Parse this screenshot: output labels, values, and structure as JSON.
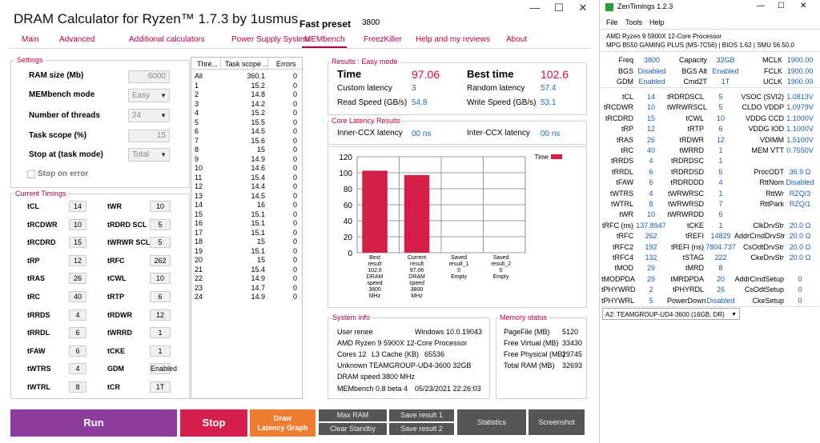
{
  "app": {
    "title": "DRAM Calculator for Ryzen™ 1.7.3 by 1usmus",
    "preset_label": "Fast preset",
    "preset_value": "3800",
    "controls": {
      "minimize": "—",
      "maximize": "☐",
      "close": "✕"
    }
  },
  "tabs": [
    {
      "label": "Main"
    },
    {
      "label": "Advanced"
    },
    {
      "label": "Additional calculators"
    },
    {
      "label": "Power Supply System"
    },
    {
      "label": "MEMbench"
    },
    {
      "label": "FreezKiller"
    },
    {
      "label": "Help and my reviews"
    },
    {
      "label": "About"
    }
  ],
  "settings": {
    "title": "Settings",
    "ram_size_label": "RAM size (Mb)",
    "ram_size_value": "6000",
    "membench_mode_label": "MEMbench mode",
    "membench_mode_value": "Easy",
    "threads_label": "Number of threads",
    "threads_value": "24",
    "task_scope_label": "Task scope (%)",
    "task_scope_value": "15",
    "stop_at_label": "Stop at (task mode)",
    "stop_at_value": "Total",
    "stop_on_error_label": "Stop on error"
  },
  "timings": {
    "title": "Current Timings",
    "left": [
      {
        "label": "tCL",
        "value": "14"
      },
      {
        "label": "tRCDWR",
        "value": "10"
      },
      {
        "label": "tRCDRD",
        "value": "15"
      },
      {
        "label": "tRP",
        "value": "12"
      },
      {
        "label": "tRAS",
        "value": "26"
      },
      {
        "label": "tRC",
        "value": "40"
      },
      {
        "label": "tRRDS",
        "value": "4"
      },
      {
        "label": "tRRDL",
        "value": "6"
      },
      {
        "label": "tFAW",
        "value": "6"
      },
      {
        "label": "tWTRS",
        "value": "4"
      },
      {
        "label": "tWTRL",
        "value": "8"
      }
    ],
    "right": [
      {
        "label": "tWR",
        "value": "10"
      },
      {
        "label": "tRDRD SCL",
        "value": "5"
      },
      {
        "label": "tWRWR SCL",
        "value": "5"
      },
      {
        "label": "tRFC",
        "value": "262"
      },
      {
        "label": "tCWL",
        "value": "10"
      },
      {
        "label": "tRTP",
        "value": "6"
      },
      {
        "label": "tRDWR",
        "value": "12"
      },
      {
        "label": "tWRRD",
        "value": "1"
      },
      {
        "label": "tCKE",
        "value": "1"
      },
      {
        "label": "GDM",
        "value": "Enabled"
      },
      {
        "label": "tCR",
        "value": "1T"
      }
    ]
  },
  "thread_table": {
    "headers": [
      "Thre...",
      "Task scope ...",
      "Errors"
    ],
    "rows": [
      [
        "All",
        "360.1",
        "0"
      ],
      [
        "1",
        "15.2",
        "0"
      ],
      [
        "2",
        "14.8",
        "0"
      ],
      [
        "3",
        "14.2",
        "0"
      ],
      [
        "4",
        "15.2",
        "0"
      ],
      [
        "5",
        "15.5",
        "0"
      ],
      [
        "6",
        "14.5",
        "0"
      ],
      [
        "7",
        "15.6",
        "0"
      ],
      [
        "8",
        "15",
        "0"
      ],
      [
        "9",
        "14.9",
        "0"
      ],
      [
        "10",
        "14.6",
        "0"
      ],
      [
        "11",
        "15.4",
        "0"
      ],
      [
        "12",
        "14.4",
        "0"
      ],
      [
        "13",
        "14.5",
        "0"
      ],
      [
        "14",
        "16",
        "0"
      ],
      [
        "15",
        "15.1",
        "0"
      ],
      [
        "16",
        "15.1",
        "0"
      ],
      [
        "17",
        "15.1",
        "0"
      ],
      [
        "18",
        "15",
        "0"
      ],
      [
        "19",
        "15.1",
        "0"
      ],
      [
        "20",
        "15",
        "0"
      ],
      [
        "21",
        "15.4",
        "0"
      ],
      [
        "22",
        "14.9",
        "0"
      ],
      [
        "23",
        "14.7",
        "0"
      ],
      [
        "24",
        "14.9",
        "0"
      ]
    ]
  },
  "results": {
    "title": "Results : Easy mode",
    "time_label": "Time",
    "time_value": "97.06",
    "best_time_label": "Best time",
    "best_time_value": "102.6",
    "custom_latency_label": "Custom latency",
    "custom_latency_value": "3",
    "random_latency_label": "Random latency",
    "random_latency_value": "57.4",
    "read_speed_label": "Read Speed (GB/s)",
    "read_speed_value": "54.8",
    "write_speed_label": "Write Speed (GB/s)",
    "write_speed_value": "53.1"
  },
  "core_latency": {
    "title": "Core Latency Results",
    "inner_label": "Inner-CCX latency",
    "inner_value": "00 ns",
    "inter_label": "Inter-CCX latency",
    "inter_value": "00 ns"
  },
  "chart_data": {
    "type": "bar",
    "categories": [
      [
        "Best",
        "result",
        "102.6",
        "DRAM",
        "speed",
        "3800",
        "MHz"
      ],
      [
        "Current",
        "result",
        "97.06",
        "DRAM",
        "speed",
        "3800",
        "MHz"
      ],
      [
        "Saved",
        "result_1",
        "0",
        "Empty"
      ],
      [
        "Saved",
        "result_2",
        "0",
        "Empty"
      ]
    ],
    "series": [
      {
        "name": "Time",
        "values": [
          102.6,
          97.06,
          0,
          0
        ],
        "color": "#d31f45"
      }
    ],
    "ylim": [
      0,
      120
    ],
    "yticks": [
      "0",
      "20",
      "40",
      "60",
      "80",
      "100",
      "120"
    ],
    "grid": true,
    "legend": "top-right"
  },
  "system_info": {
    "title": "System info",
    "user": "User renee",
    "os": "Windows 10.0.19043",
    "cpu": "AMD Ryzen 9 5900X 12-Core Processor",
    "cores": "Cores 12",
    "l3_label": "L3 Cache (KB)",
    "l3_value": "65536",
    "memory": "Unknown TEAMGROUP-UD4-3600  32GB",
    "dram_speed": "DRAM speed 3800 MHz",
    "membench_version": "MEMbench 0.8 beta 4",
    "date": "05/23/2021 22:26:03"
  },
  "memory_status": {
    "title": "Memory status",
    "rows": [
      {
        "label": "PageFile (MB)",
        "value": "5120"
      },
      {
        "label": "Free Virtual (MB)",
        "value": "33430"
      },
      {
        "label": "Free Physical (MB)",
        "value": "29745"
      },
      {
        "label": "Total RAM (MB)",
        "value": "32693"
      }
    ]
  },
  "buttons": {
    "run": "Run",
    "stop": "Stop",
    "draw": "Draw\nLatency Graph",
    "max_ram": "Max RAM",
    "clear_standby": "Clear Standby",
    "save1": "Save result 1",
    "save2": "Save result 2",
    "statistics": "Statistics",
    "screenshot": "Screenshot"
  },
  "colors": {
    "accent": "#b0004a",
    "run": "#8e3b9e",
    "stop": "#d51f4c",
    "draw": "#ef7d31",
    "bar": "#d31f45",
    "value_blue": "#1a5fb0"
  },
  "zen": {
    "title": "ZenTimings 1.2.3",
    "menu": [
      "File",
      "Tools",
      "Help"
    ],
    "cpu": "AMD Ryzen 9 5900X 12-Core Processor",
    "board": "MPG B550 GAMING PLUS (MS-7C56) | BIOS 1.62 | SMU 56.50.0",
    "top_rows": [
      [
        "Freq",
        "3800",
        "Capacity",
        "32GB",
        "MCLK",
        "1900.00"
      ],
      [
        "BGS",
        "Disabled",
        "BGS Alt",
        "Enabled",
        "FCLK",
        "1900.00"
      ],
      [
        "GDM",
        "Enabled",
        "Cmd2T",
        "1T",
        "UCLK",
        "1900.00"
      ]
    ],
    "rows": [
      [
        "tCL",
        "14",
        "tRDRDSCL",
        "5",
        "VSOC (SVI2)",
        "1.0813V"
      ],
      [
        "tRCDWR",
        "10",
        "tWRWRSCL",
        "5",
        "CLDO VDDP",
        "1.0979V"
      ],
      [
        "tRCDRD",
        "15",
        "tCWL",
        "10",
        "VDDG CCD",
        "1.1000V"
      ],
      [
        "tRP",
        "12",
        "tRTP",
        "6",
        "VDDG IOD",
        "1.1000V"
      ],
      [
        "tRAS",
        "26",
        "tRDWR",
        "12",
        "VDIMM",
        "1.5100V"
      ],
      [
        "tRC",
        "40",
        "tWRRD",
        "1",
        "MEM VTT",
        "0.7550V"
      ],
      [
        "tRRDS",
        "4",
        "tRDRDSC",
        "1",
        "",
        ""
      ],
      [
        "tRRDL",
        "6",
        "tRDRDSD",
        "5",
        "ProcODT",
        "36.9 Ω"
      ],
      [
        "tFAW",
        "6",
        "tRDRDDD",
        "4",
        "RttNom",
        "Disabled"
      ],
      [
        "tWTRS",
        "4",
        "tWRWRSC",
        "1",
        "RttWr",
        "RZQ/3"
      ],
      [
        "tWTRL",
        "8",
        "tWRWRSD",
        "7",
        "RttPark",
        "RZQ/1"
      ],
      [
        "tWR",
        "10",
        "tWRWRDD",
        "6",
        "",
        ""
      ],
      [
        "tRFC (ns)",
        "137.8947",
        "tCKE",
        "1",
        "ClkDrvStr",
        "20.0 Ω"
      ],
      [
        "tRFC",
        "262",
        "tREFI",
        "14829",
        "AddrCmdDrvStr",
        "20.0 Ω"
      ],
      [
        "tRFC2",
        "192",
        "tREFI (ns)",
        "7804.737",
        "CsOdtDrvStr",
        "20.0 Ω"
      ],
      [
        "tRFC4",
        "132",
        "tSTAG",
        "222",
        "CkeDrvStr",
        "20.0 Ω"
      ],
      [
        "tMOD",
        "29",
        "tMRD",
        "8",
        "",
        ""
      ],
      [
        "tMODPDA",
        "29",
        "tMRDPDA",
        "20",
        "AddrCmdSetup",
        "0"
      ],
      [
        "tPHYWRD",
        "2",
        "tPHYRDL",
        "26",
        "CsOdtSetup",
        "0"
      ],
      [
        "tPHYWRL",
        "5",
        "PowerDown",
        "Disabled",
        "CkeSetup",
        "0"
      ]
    ],
    "dimm_select": "A2: TEAMGROUP-UD4-3600 (16GB, DR)"
  }
}
